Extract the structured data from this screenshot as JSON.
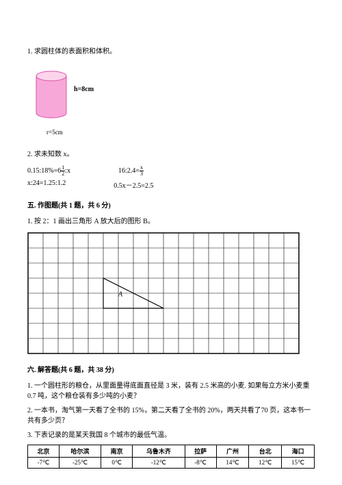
{
  "q1": {
    "text": "1. 求圆柱体的表面积和体积。",
    "cylinder": {
      "height_label": "h=8cm",
      "radius_label": "r=5cm",
      "fill_color": "#f7a8d8",
      "stroke_color": "#d94fa8",
      "top_highlight": "#fcd5ec"
    }
  },
  "q2": {
    "text": "2. 求未知数 x。",
    "eqs": {
      "e1_pre": "0.15:18%=6",
      "e1_frac_n": "1",
      "e1_frac_d": "2",
      "e1_post": ":x",
      "e2_pre": "16:2.4=",
      "e2_frac_n": "x",
      "e2_frac_d": "3",
      "e3": "x:24=1.25:1.2",
      "e4": "0.5x－2.5=2.5"
    }
  },
  "sec5": {
    "title": "五. 作图题(共 1 题，共 6 分)",
    "q1": "1. 按 2：1 画出三角形 A 放大后的图形 B。",
    "grid": {
      "cols": 18,
      "rows": 8,
      "cell": 22,
      "border_color": "#000000",
      "triangle_label": "A",
      "tri_points": [
        [
          5,
          3
        ],
        [
          5,
          5
        ],
        [
          9,
          5
        ]
      ]
    }
  },
  "sec6": {
    "title": "六. 解答题(共 6 题，共 38 分)",
    "q1": "1. 一个圆柱形的粮仓，从里面量得底面直径是 3 米，装有 2.5 米高的小麦. 如果每立方米小麦重 0.7 吨，这个粮仓装有多少吨的小麦？",
    "q2": "2. 一本书，淘气第一天看了全书的 15%，第二天看了全书的 20%，两天共看了70 页，这本书一共有多少页？",
    "q3": "3. 下表记录的是某天我国 8 个城市的最低气温。",
    "table": {
      "headers": [
        "北京",
        "哈尔滨",
        "南京",
        "乌鲁木齐",
        "拉萨",
        "广州",
        "台北",
        "海口"
      ],
      "values": [
        "-7℃",
        "-25℃",
        "0℃",
        "-12℃",
        "-8℃",
        "14℃",
        "12℃",
        "15℃"
      ]
    }
  }
}
